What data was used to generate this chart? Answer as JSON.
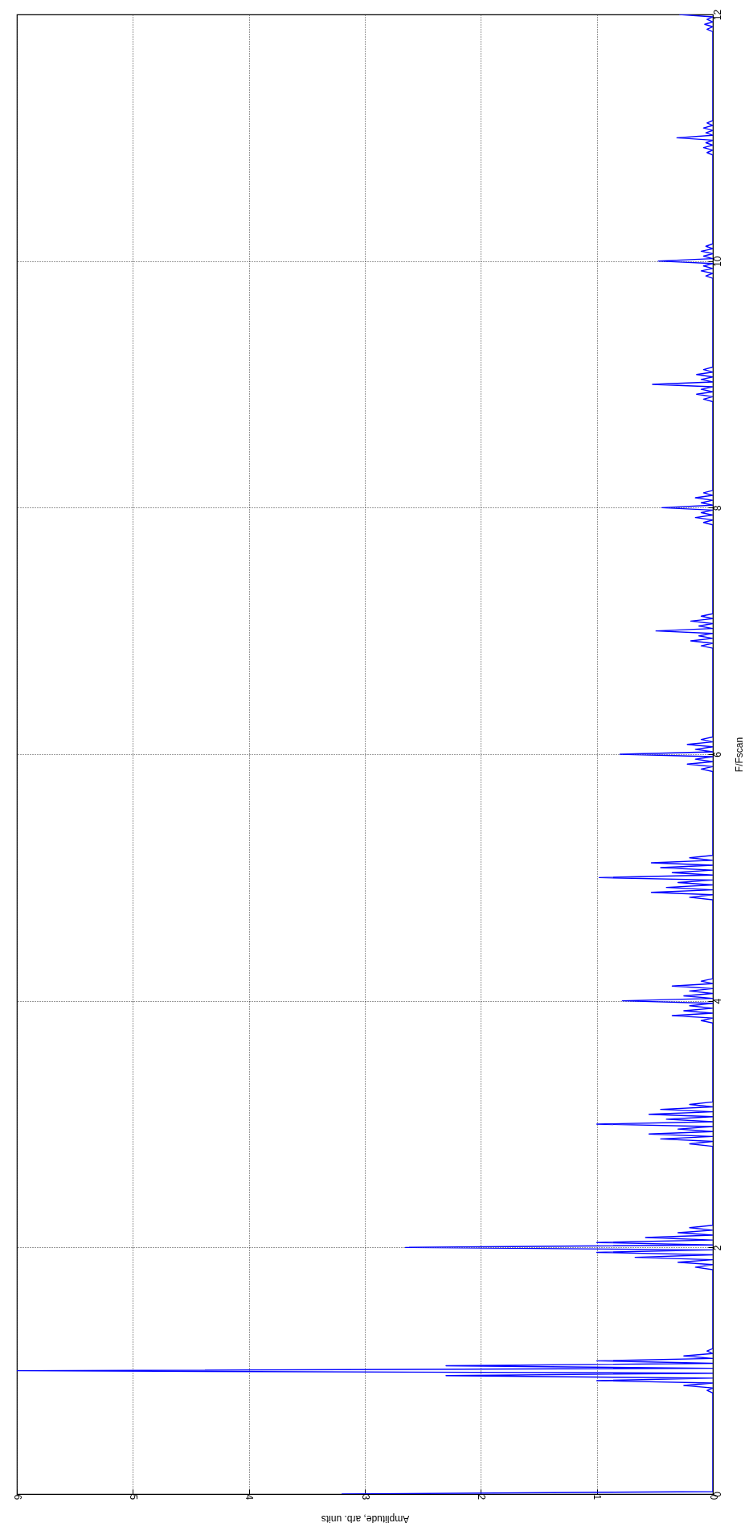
{
  "chart_data": {
    "type": "line",
    "xlabel": "Amplitude, arb. units",
    "ylabel": "F/Fscan",
    "xlim": [
      6,
      0
    ],
    "xticks": [
      0,
      1,
      2,
      3,
      4,
      5,
      6
    ],
    "ylim": [
      0,
      12
    ],
    "yticks": [
      0,
      2,
      4,
      6,
      8,
      10,
      12
    ],
    "grid": true,
    "series": [
      {
        "color": "#0000ff",
        "x": [
          3.2,
          0,
          0,
          0.05,
          0,
          0.25,
          0,
          1.0,
          0,
          2.3,
          0,
          6.0,
          0,
          2.3,
          0,
          1.0,
          0,
          0.25,
          0,
          0.05,
          0,
          0,
          0.15,
          0,
          0.3,
          0,
          0.67,
          0,
          1.0,
          0,
          2.65,
          0,
          1.0,
          0,
          0.58,
          0,
          0.3,
          0,
          0.2,
          0,
          0,
          0.2,
          0,
          0.45,
          0,
          0.55,
          0,
          0.3,
          0,
          1.0,
          0,
          0.4,
          0,
          0.55,
          0,
          0.45,
          0,
          0.2,
          0,
          0,
          0.1,
          0,
          0.35,
          0,
          0.25,
          0,
          0.2,
          0,
          0.78,
          0,
          0.25,
          0,
          0.2,
          0,
          0.35,
          0,
          0.1,
          0,
          0,
          0.2,
          0,
          0.53,
          0,
          0.4,
          0,
          0.3,
          0,
          0.98,
          0,
          0.35,
          0,
          0.45,
          0,
          0.53,
          0,
          0.2,
          0,
          0,
          0.1,
          0,
          0.22,
          0,
          0.15,
          0,
          0.8,
          0,
          0.15,
          0,
          0.22,
          0,
          0.1,
          0,
          0,
          0.1,
          0,
          0.19,
          0,
          0.12,
          0,
          0.49,
          0,
          0.12,
          0,
          0.19,
          0,
          0.1,
          0,
          0,
          0.08,
          0,
          0.15,
          0,
          0.1,
          0,
          0.44,
          0,
          0.1,
          0,
          0.15,
          0,
          0.08,
          0,
          0,
          0.08,
          0,
          0.14,
          0,
          0.1,
          0,
          0.52,
          0,
          0.1,
          0,
          0.14,
          0,
          0.08,
          0,
          0,
          0.06,
          0,
          0.1,
          0,
          0.08,
          0,
          0.47,
          0,
          0.08,
          0,
          0.1,
          0,
          0.06,
          0,
          0,
          0.05,
          0,
          0.08,
          0,
          0.06,
          0,
          0.31,
          0,
          0.06,
          0,
          0.08,
          0,
          0.05,
          0,
          0,
          0.05,
          0,
          0.07,
          0,
          0.05,
          0,
          0.29
        ],
        "values": [
          0,
          0.02,
          0.82,
          0.84,
          0.86,
          0.88,
          0.9,
          0.92,
          0.94,
          0.96,
          0.98,
          1,
          1.02,
          1.04,
          1.06,
          1.08,
          1.1,
          1.12,
          1.14,
          1.16,
          1.18,
          1.82,
          1.84,
          1.86,
          1.88,
          1.9,
          1.92,
          1.94,
          1.96,
          1.98,
          2,
          2.02,
          2.04,
          2.06,
          2.08,
          2.1,
          2.12,
          2.14,
          2.16,
          2.18,
          2.82,
          2.84,
          2.86,
          2.88,
          2.9,
          2.92,
          2.94,
          2.96,
          2.98,
          3,
          3.02,
          3.04,
          3.06,
          3.08,
          3.1,
          3.12,
          3.14,
          3.16,
          3.18,
          3.82,
          3.84,
          3.86,
          3.88,
          3.9,
          3.92,
          3.94,
          3.96,
          3.98,
          4,
          4.02,
          4.04,
          4.06,
          4.08,
          4.1,
          4.12,
          4.14,
          4.16,
          4.18,
          4.82,
          4.84,
          4.86,
          4.88,
          4.9,
          4.92,
          4.94,
          4.96,
          4.98,
          5,
          5.02,
          5.04,
          5.06,
          5.08,
          5.1,
          5.12,
          5.14,
          5.16,
          5.18,
          5.86,
          5.88,
          5.9,
          5.92,
          5.94,
          5.96,
          5.98,
          6,
          6.02,
          6.04,
          6.06,
          6.08,
          6.1,
          6.12,
          6.14,
          6.86,
          6.88,
          6.9,
          6.92,
          6.94,
          6.96,
          6.98,
          7,
          7.02,
          7.04,
          7.06,
          7.08,
          7.1,
          7.12,
          7.14,
          7.86,
          7.88,
          7.9,
          7.92,
          7.94,
          7.96,
          7.98,
          8,
          8.02,
          8.04,
          8.06,
          8.08,
          8.1,
          8.12,
          8.14,
          8.86,
          8.88,
          8.9,
          8.92,
          8.94,
          8.96,
          8.98,
          9,
          9.02,
          9.04,
          9.06,
          9.08,
          9.1,
          9.12,
          9.14,
          9.86,
          9.88,
          9.9,
          9.92,
          9.94,
          9.96,
          9.98,
          10,
          10.02,
          10.04,
          10.06,
          10.08,
          10.1,
          10.12,
          10.14,
          10.86,
          10.88,
          10.9,
          10.92,
          10.94,
          10.96,
          10.98,
          11,
          11.02,
          11.04,
          11.06,
          11.08,
          11.1,
          11.12,
          11.14,
          11.86,
          11.88,
          11.9,
          11.92,
          11.94,
          11.96,
          11.98,
          12
        ]
      }
    ]
  }
}
